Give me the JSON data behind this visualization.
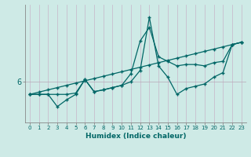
{
  "xlabel": "Humidex (Indice chaleur)",
  "background_color": "#ceeae6",
  "line_color": "#006666",
  "grid_color_v": "#c8b4c8",
  "grid_color_h": "#b8a8b8",
  "xlim": [
    -0.5,
    23.5
  ],
  "ylim": [
    5.1,
    7.7
  ],
  "x": [
    0,
    1,
    2,
    3,
    4,
    5,
    6,
    7,
    8,
    9,
    10,
    11,
    12,
    13,
    14,
    15,
    16,
    17,
    18,
    19,
    20,
    21,
    22,
    23
  ],
  "line1_straight": [
    5.72,
    5.77,
    5.82,
    5.87,
    5.92,
    5.97,
    6.02,
    6.07,
    6.12,
    6.17,
    6.22,
    6.27,
    6.32,
    6.37,
    6.42,
    6.47,
    6.52,
    6.57,
    6.62,
    6.67,
    6.72,
    6.77,
    6.82,
    6.87
  ],
  "line2": [
    5.72,
    5.72,
    5.72,
    5.72,
    5.72,
    5.75,
    6.05,
    5.78,
    5.82,
    5.87,
    5.92,
    6.18,
    6.9,
    7.2,
    6.55,
    6.45,
    6.35,
    6.38,
    6.38,
    6.35,
    6.42,
    6.45,
    6.82,
    6.87
  ],
  "line3": [
    5.72,
    5.72,
    5.72,
    5.45,
    5.6,
    5.72,
    6.05,
    5.78,
    5.82,
    5.87,
    5.92,
    6.0,
    6.25,
    7.42,
    6.35,
    6.1,
    5.72,
    5.85,
    5.9,
    5.95,
    6.1,
    6.2,
    6.82,
    6.87
  ],
  "ytick_val": 6.0,
  "ytick_label": "6",
  "xticks": [
    0,
    1,
    2,
    3,
    4,
    5,
    6,
    7,
    8,
    9,
    10,
    11,
    12,
    13,
    14,
    15,
    16,
    17,
    18,
    19,
    20,
    21,
    22,
    23
  ]
}
